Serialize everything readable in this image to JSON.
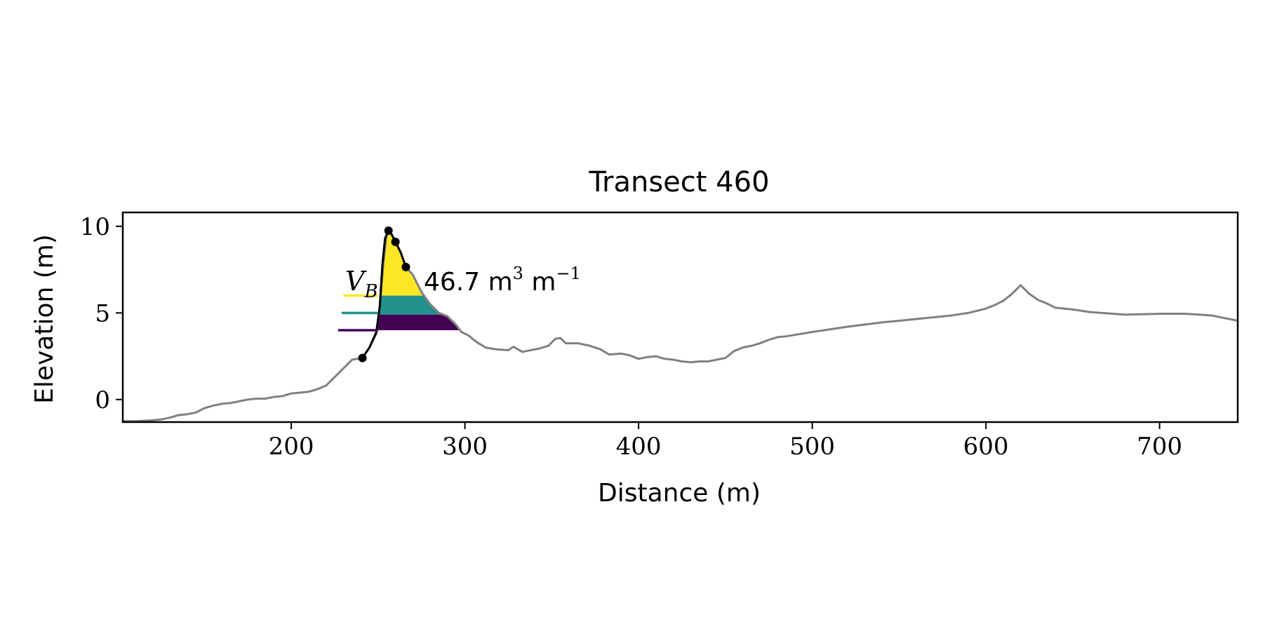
{
  "chart_data": {
    "type": "line",
    "title": "Transect 460",
    "xlabel": "Distance (m)",
    "ylabel": "Elevation (m)",
    "xlim": [
      103,
      745
    ],
    "ylim": [
      -1.3,
      10.8
    ],
    "xticks": [
      200,
      300,
      400,
      500,
      600,
      700
    ],
    "yticks": [
      0,
      5,
      10
    ],
    "grid": false,
    "legend": "none",
    "series": [
      {
        "color": "#808080",
        "points": [
          [
            103,
            -1.25
          ],
          [
            110,
            -1.25
          ],
          [
            120,
            -1.2
          ],
          [
            125,
            -1.15
          ],
          [
            130,
            -1.05
          ],
          [
            135,
            -0.9
          ],
          [
            140,
            -0.85
          ],
          [
            145,
            -0.75
          ],
          [
            150,
            -0.5
          ],
          [
            155,
            -0.35
          ],
          [
            160,
            -0.25
          ],
          [
            165,
            -0.2
          ],
          [
            170,
            -0.1
          ],
          [
            175,
            0.0
          ],
          [
            180,
            0.05
          ],
          [
            185,
            0.05
          ],
          [
            190,
            0.15
          ],
          [
            195,
            0.2
          ],
          [
            200,
            0.35
          ],
          [
            205,
            0.4
          ],
          [
            210,
            0.45
          ],
          [
            215,
            0.6
          ],
          [
            220,
            0.8
          ],
          [
            225,
            1.3
          ],
          [
            230,
            1.8
          ],
          [
            235,
            2.3
          ],
          [
            241,
            2.4
          ],
          [
            245,
            3.0
          ],
          [
            249,
            3.8
          ],
          [
            251,
            5.4
          ],
          [
            253,
            7.8
          ],
          [
            255,
            9.6
          ],
          [
            256,
            9.75
          ],
          [
            258,
            9.5
          ],
          [
            260,
            9.1
          ],
          [
            263,
            8.5
          ],
          [
            266,
            7.65
          ],
          [
            270,
            7.2
          ],
          [
            275,
            6.2
          ],
          [
            280,
            5.5
          ],
          [
            285,
            5.0
          ],
          [
            290,
            4.8
          ],
          [
            295,
            4.3
          ],
          [
            298,
            3.9
          ],
          [
            302,
            3.7
          ],
          [
            307,
            3.3
          ],
          [
            312,
            3.0
          ],
          [
            318,
            2.9
          ],
          [
            325,
            2.85
          ],
          [
            328,
            3.05
          ],
          [
            333,
            2.75
          ],
          [
            338,
            2.85
          ],
          [
            343,
            2.95
          ],
          [
            348,
            3.1
          ],
          [
            352,
            3.5
          ],
          [
            355,
            3.55
          ],
          [
            358,
            3.25
          ],
          [
            365,
            3.25
          ],
          [
            372,
            3.1
          ],
          [
            378,
            2.9
          ],
          [
            383,
            2.6
          ],
          [
            390,
            2.65
          ],
          [
            395,
            2.55
          ],
          [
            400,
            2.35
          ],
          [
            405,
            2.45
          ],
          [
            410,
            2.5
          ],
          [
            415,
            2.35
          ],
          [
            420,
            2.3
          ],
          [
            425,
            2.2
          ],
          [
            430,
            2.15
          ],
          [
            435,
            2.2
          ],
          [
            440,
            2.2
          ],
          [
            445,
            2.3
          ],
          [
            450,
            2.4
          ],
          [
            455,
            2.8
          ],
          [
            460,
            3.0
          ],
          [
            465,
            3.1
          ],
          [
            470,
            3.25
          ],
          [
            475,
            3.45
          ],
          [
            480,
            3.6
          ],
          [
            485,
            3.65
          ],
          [
            500,
            3.9
          ],
          [
            520,
            4.2
          ],
          [
            540,
            4.45
          ],
          [
            560,
            4.65
          ],
          [
            580,
            4.85
          ],
          [
            590,
            5.0
          ],
          [
            600,
            5.25
          ],
          [
            605,
            5.45
          ],
          [
            610,
            5.7
          ],
          [
            615,
            6.1
          ],
          [
            620,
            6.6
          ],
          [
            625,
            6.1
          ],
          [
            630,
            5.75
          ],
          [
            635,
            5.55
          ],
          [
            640,
            5.3
          ],
          [
            650,
            5.2
          ],
          [
            660,
            5.05
          ],
          [
            680,
            4.9
          ],
          [
            700,
            4.95
          ],
          [
            715,
            4.95
          ],
          [
            730,
            4.85
          ],
          [
            745,
            4.55
          ]
        ]
      },
      {
        "color": "#000000",
        "points": [
          [
            241,
            2.4
          ],
          [
            245,
            3.0
          ],
          [
            249,
            3.9
          ],
          [
            251,
            5.4
          ],
          [
            252.5,
            7.8
          ],
          [
            254,
            9.3
          ],
          [
            256,
            9.75
          ],
          [
            258,
            9.5
          ],
          [
            260,
            9.1
          ],
          [
            263,
            8.5
          ],
          [
            266,
            7.65
          ]
        ],
        "markers": [
          [
            241,
            2.4
          ],
          [
            256,
            9.75
          ],
          [
            260,
            9.1
          ],
          [
            266,
            7.65
          ]
        ]
      }
    ],
    "fill_bands": [
      {
        "color": "#fde725",
        "ymin": 6.0,
        "ymax": 9.75,
        "legend_line": {
          "x": [
            230,
            250
          ],
          "y": 6.0
        }
      },
      {
        "color": "#21918c",
        "ymin": 4.9,
        "ymax": 6.0,
        "legend_line": {
          "x": [
            229,
            250
          ],
          "y": 5.0
        }
      },
      {
        "color": "#440154",
        "ymin": 4.0,
        "ymax": 4.9,
        "legend_line": {
          "x": [
            227,
            250
          ],
          "y": 4.0
        }
      }
    ],
    "annotations": {
      "vb_label": "V",
      "vb_subscript": "B",
      "volume_value": "46.7 m",
      "volume_exp1": "3",
      "volume_unit": " m",
      "volume_exp2": "−1"
    }
  }
}
